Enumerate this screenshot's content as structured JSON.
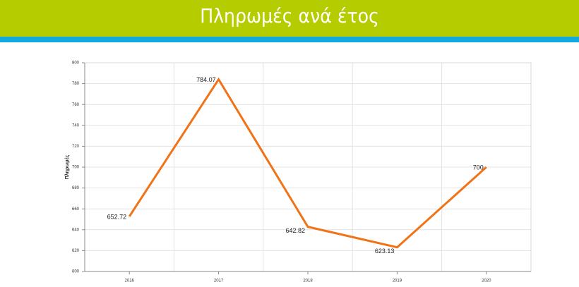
{
  "chart_data": {
    "type": "line",
    "title": "Πληρωμές ανά έτος",
    "y_label": "Πληρωμές",
    "categories": [
      "2016",
      "2017",
      "2018",
      "2019",
      "2020"
    ],
    "series": [
      {
        "name": "Πληρωμές",
        "color": "#f07318",
        "values": [
          652.72,
          784.07,
          642.82,
          623.13,
          700
        ]
      }
    ],
    "ylim": [
      600,
      800
    ],
    "yticks": [
      600,
      620,
      640,
      660,
      680,
      700,
      720,
      740,
      760,
      780,
      800
    ],
    "grid": true
  }
}
